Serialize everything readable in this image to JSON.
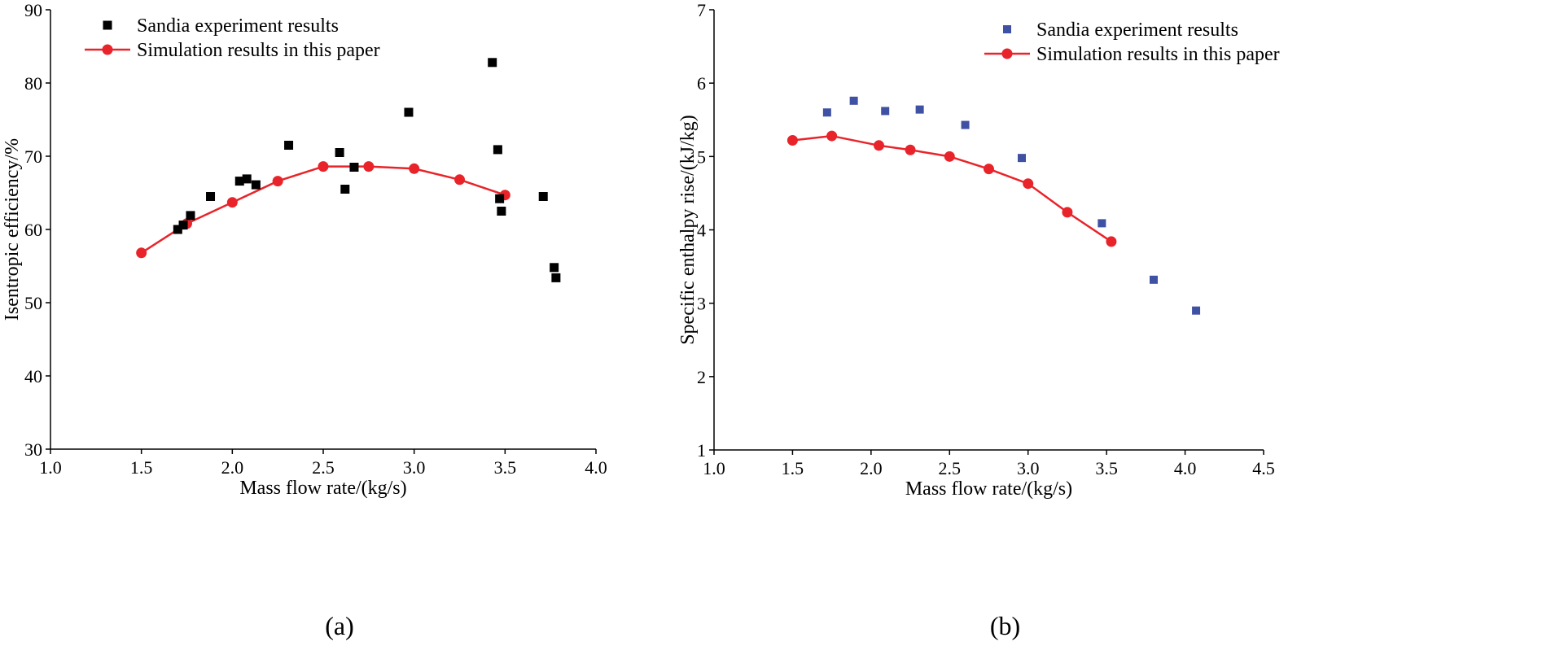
{
  "chart_data": [
    {
      "type": "scatter",
      "panel_label": "(a)",
      "xlabel": "Mass flow rate/(kg/s)",
      "ylabel": "Isentropic efficiency/%",
      "xlim": [
        1.0,
        4.0
      ],
      "ylim": [
        30,
        90
      ],
      "xticks": [
        1.0,
        1.5,
        2.0,
        2.5,
        3.0,
        3.5,
        4.0
      ],
      "yticks": [
        30,
        40,
        50,
        60,
        70,
        80,
        90
      ],
      "xtick_labels": [
        "1.0",
        "1.5",
        "2.0",
        "2.5",
        "3.0",
        "3.5",
        "4.0"
      ],
      "ytick_labels": [
        "30",
        "40",
        "50",
        "60",
        "70",
        "80",
        "90"
      ],
      "legend_position": "top-left",
      "series": [
        {
          "name": "Sandia experiment results",
          "kind": "scatter",
          "marker": "square",
          "color": "#000000",
          "x": [
            1.7,
            1.73,
            1.77,
            1.88,
            2.04,
            2.08,
            2.13,
            2.31,
            2.59,
            2.62,
            2.67,
            2.97,
            3.43,
            3.46,
            3.47,
            3.48,
            3.71,
            3.77,
            3.78
          ],
          "y": [
            60.0,
            60.6,
            61.9,
            64.5,
            66.6,
            66.9,
            66.1,
            71.5,
            70.5,
            65.5,
            68.5,
            76.0,
            82.8,
            70.9,
            64.2,
            62.5,
            64.5,
            54.8,
            53.4
          ]
        },
        {
          "name": "Simulation results in this paper",
          "kind": "line",
          "marker": "circle",
          "color": "#e8242a",
          "x": [
            1.5,
            1.75,
            2.0,
            2.25,
            2.5,
            2.75,
            3.0,
            3.25,
            3.5
          ],
          "y": [
            56.8,
            60.8,
            63.7,
            66.6,
            68.6,
            68.6,
            68.3,
            66.8,
            64.7
          ]
        }
      ]
    },
    {
      "type": "scatter",
      "panel_label": "(b)",
      "xlabel": "Mass flow rate/(kg/s)",
      "ylabel": "Specific enthalpy rise/(kJ/kg)",
      "xlim": [
        1.0,
        4.5
      ],
      "ylim": [
        1,
        7
      ],
      "xticks": [
        1.0,
        1.5,
        2.0,
        2.5,
        3.0,
        3.5,
        4.0,
        4.5
      ],
      "yticks": [
        1,
        2,
        3,
        4,
        5,
        6,
        7
      ],
      "xtick_labels": [
        "1.0",
        "1.5",
        "2.0",
        "2.5",
        "3.0",
        "3.5",
        "4.0",
        "4.5"
      ],
      "ytick_labels": [
        "1",
        "2",
        "3",
        "4",
        "5",
        "6",
        "7"
      ],
      "legend_position": "top-right",
      "series": [
        {
          "name": "Sandia experiment results",
          "kind": "scatter",
          "marker": "square",
          "color": "#3f51a3",
          "x": [
            1.72,
            1.89,
            2.09,
            2.31,
            2.6,
            2.96,
            3.47,
            3.8,
            4.07
          ],
          "y": [
            5.6,
            5.76,
            5.62,
            5.64,
            5.43,
            4.98,
            4.09,
            3.32,
            2.9
          ]
        },
        {
          "name": "Simulation results in this paper",
          "kind": "line",
          "marker": "circle",
          "color": "#e8242a",
          "x": [
            1.5,
            1.75,
            2.05,
            2.25,
            2.5,
            2.75,
            3.0,
            3.25,
            3.53
          ],
          "y": [
            5.22,
            5.28,
            5.15,
            5.09,
            5.0,
            4.83,
            4.63,
            4.24,
            3.84
          ]
        }
      ]
    }
  ]
}
